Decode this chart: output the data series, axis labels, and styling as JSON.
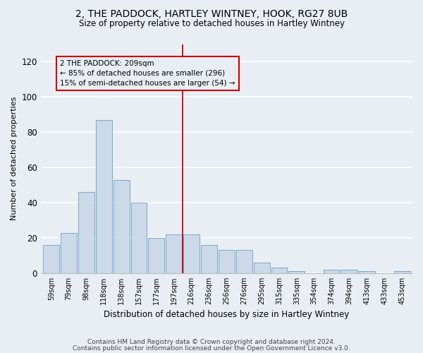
{
  "title": "2, THE PADDOCK, HARTLEY WINTNEY, HOOK, RG27 8UB",
  "subtitle": "Size of property relative to detached houses in Hartley Wintney",
  "xlabel": "Distribution of detached houses by size in Hartley Wintney",
  "ylabel": "Number of detached properties",
  "categories": [
    "59sqm",
    "79sqm",
    "98sqm",
    "118sqm",
    "138sqm",
    "157sqm",
    "177sqm",
    "197sqm",
    "216sqm",
    "236sqm",
    "256sqm",
    "276sqm",
    "295sqm",
    "315sqm",
    "335sqm",
    "354sqm",
    "374sqm",
    "394sqm",
    "413sqm",
    "433sqm",
    "453sqm"
  ],
  "values": [
    16,
    23,
    46,
    87,
    53,
    40,
    20,
    22,
    22,
    16,
    13,
    13,
    6,
    3,
    1,
    0,
    2,
    2,
    1,
    0,
    1
  ],
  "bar_color": "#ccd9e8",
  "bar_edge_color": "#7aaac8",
  "vline_x_index": 7.5,
  "vline_color": "#cc0000",
  "ylim": [
    0,
    130
  ],
  "yticks": [
    0,
    20,
    40,
    60,
    80,
    100,
    120
  ],
  "annotation_text": "2 THE PADDOCK: 209sqm\n← 85% of detached houses are smaller (296)\n15% of semi-detached houses are larger (54) →",
  "annotation_box_color": "#cc0000",
  "footer1": "Contains HM Land Registry data © Crown copyright and database right 2024.",
  "footer2": "Contains public sector information licensed under the Open Government Licence v3.0.",
  "bg_color": "#e8eef4",
  "grid_color": "#ffffff"
}
